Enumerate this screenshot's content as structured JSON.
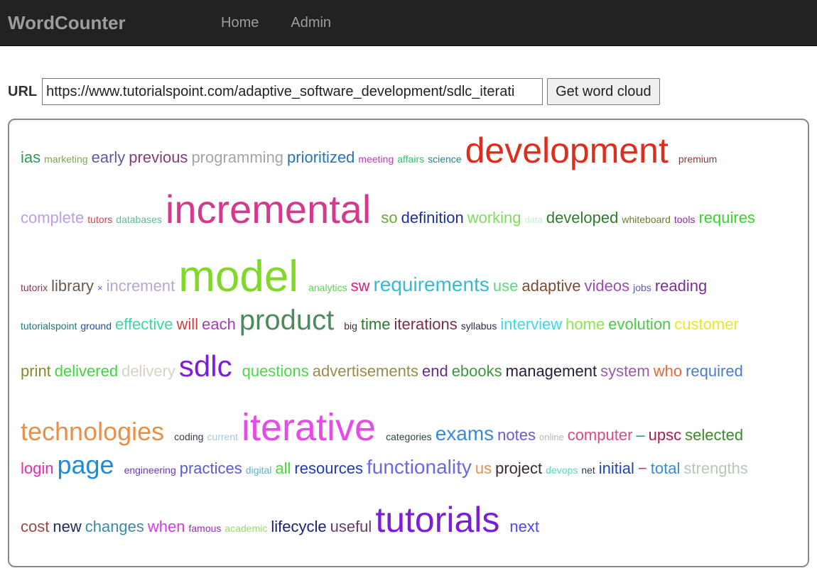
{
  "navbar": {
    "brand": "WordCounter",
    "links": [
      "Home",
      "Admin"
    ]
  },
  "form": {
    "label": "URL",
    "url_value": "https://www.tutorialspoint.com/adaptive_software_development/sdlc_iterati",
    "button_label": "Get word cloud"
  },
  "cloud": {
    "lines": [
      {
        "words": [
          {
            "t": "ias",
            "s": 22,
            "c": "#2e9a58"
          },
          {
            "t": "marketing",
            "s": 14,
            "c": "#7fa35a"
          },
          {
            "t": "early",
            "s": 22,
            "c": "#6757a8"
          },
          {
            "t": "previous",
            "s": 22,
            "c": "#8a3a7c"
          },
          {
            "t": "programming",
            "s": 22,
            "c": "#a5a5a5"
          },
          {
            "t": "prioritized",
            "s": 22,
            "c": "#2874b8"
          },
          {
            "t": "meeting",
            "s": 14,
            "c": "#c03ab5"
          },
          {
            "t": "affairs",
            "s": 14,
            "c": "#31c46b"
          },
          {
            "t": "science",
            "s": 14,
            "c": "#28809a"
          },
          {
            "t": "development",
            "s": 50,
            "c": "#dd2e1d"
          },
          {
            "t": "premium",
            "s": 14,
            "c": "#8c3a3a"
          }
        ]
      },
      {
        "words": [
          {
            "t": "complete",
            "s": 22,
            "c": "#c09be8"
          },
          {
            "t": "tutors",
            "s": 14,
            "c": "#d4424a"
          },
          {
            "t": "databases",
            "s": 14,
            "c": "#5cb89a"
          },
          {
            "t": "incremental",
            "s": 56,
            "c": "#d3398c"
          },
          {
            "t": "so",
            "s": 22,
            "c": "#6da83a"
          },
          {
            "t": "definition",
            "s": 22,
            "c": "#1e2ea5"
          },
          {
            "t": "working",
            "s": 22,
            "c": "#7fdc62"
          },
          {
            "t": "data",
            "s": 13,
            "c": "#c7ecd3"
          },
          {
            "t": "developed",
            "s": 22,
            "c": "#2e7d2e"
          },
          {
            "t": "whiteboard",
            "s": 14,
            "c": "#6e7a2a"
          },
          {
            "t": "tools",
            "s": 14,
            "c": "#8a2aa8"
          },
          {
            "t": "requires",
            "s": 22,
            "c": "#33d92a"
          }
        ]
      },
      {
        "words": [
          {
            "t": "tutorix",
            "s": 14,
            "c": "#8a3a4a"
          },
          {
            "t": "library",
            "s": 22,
            "c": "#6e5a4a"
          },
          {
            "t": "×",
            "s": 13,
            "c": "#6a5acd"
          },
          {
            "t": "increment",
            "s": 22,
            "c": "#b8a4d8"
          },
          {
            "t": "model",
            "s": 62,
            "c": "#80d92a"
          },
          {
            "t": "analytics",
            "s": 14,
            "c": "#54d94a"
          },
          {
            "t": "sw",
            "s": 22,
            "c": "#e5197b"
          },
          {
            "t": "requirements",
            "s": 28,
            "c": "#35bcd0"
          },
          {
            "t": "use",
            "s": 22,
            "c": "#5ed97d"
          },
          {
            "t": "adaptive",
            "s": 22,
            "c": "#7a4a33"
          },
          {
            "t": "videos",
            "s": 22,
            "c": "#a04ab8"
          },
          {
            "t": "jobs",
            "s": 14,
            "c": "#5a55c5"
          },
          {
            "t": "reading",
            "s": 22,
            "c": "#7a2e98"
          }
        ]
      },
      {
        "words": [
          {
            "t": "tutorialspoint",
            "s": 14,
            "c": "#1e7a7d"
          },
          {
            "t": "ground",
            "s": 14,
            "c": "#1e4fa8"
          },
          {
            "t": "effective",
            "s": 22,
            "c": "#3ad9a4"
          },
          {
            "t": "will",
            "s": 22,
            "c": "#d93a3a"
          },
          {
            "t": "each",
            "s": 22,
            "c": "#a43ab8"
          },
          {
            "t": "product",
            "s": 40,
            "c": "#4e8a5e"
          },
          {
            "t": "big",
            "s": 14,
            "c": "#4a2a4a"
          },
          {
            "t": "time",
            "s": 22,
            "c": "#2e7a2e"
          },
          {
            "t": "iterations",
            "s": 22,
            "c": "#7a2e4a"
          },
          {
            "t": "syllabus",
            "s": 14,
            "c": "#2e2a4e"
          },
          {
            "t": "interview",
            "s": 22,
            "c": "#3ad9e8"
          },
          {
            "t": "home",
            "s": 22,
            "c": "#8ae84a"
          },
          {
            "t": "evolution",
            "s": 22,
            "c": "#4ac848"
          },
          {
            "t": "customer",
            "s": 22,
            "c": "#e8e82a"
          }
        ]
      },
      {
        "words": [
          {
            "t": "print",
            "s": 22,
            "c": "#8a8a2a"
          },
          {
            "t": "delivered",
            "s": 22,
            "c": "#3ad93a"
          },
          {
            "t": "delivery",
            "s": 22,
            "c": "#d8d2c2"
          },
          {
            "t": "sdlc",
            "s": 42,
            "c": "#7a1ed9"
          },
          {
            "t": "questions",
            "s": 22,
            "c": "#4ad94a"
          },
          {
            "t": "advertisements",
            "s": 22,
            "c": "#9a8a4a"
          },
          {
            "t": "end",
            "s": 22,
            "c": "#6a2a8a"
          },
          {
            "t": "ebooks",
            "s": 22,
            "c": "#3a9a3a"
          },
          {
            "t": "management",
            "s": 22,
            "c": "#2a1a3a"
          },
          {
            "t": "system",
            "s": 22,
            "c": "#9a5aa8"
          },
          {
            "t": "who",
            "s": 22,
            "c": "#e86a3a"
          },
          {
            "t": "required",
            "s": 22,
            "c": "#4a7ad9"
          }
        ]
      },
      {
        "words": [
          {
            "t": "technologies",
            "s": 36,
            "c": "#e8904a"
          },
          {
            "t": "coding",
            "s": 14,
            "c": "#3a3a4a"
          },
          {
            "t": "current",
            "s": 14,
            "c": "#a8c8d8"
          },
          {
            "t": "iterative",
            "s": 54,
            "c": "#e84ae8"
          },
          {
            "t": "categories",
            "s": 14,
            "c": "#2a4a3a"
          },
          {
            "t": "exams",
            "s": 28,
            "c": "#3a8ad9"
          },
          {
            "t": "notes",
            "s": 22,
            "c": "#6a5ad9"
          },
          {
            "t": "online",
            "s": 13,
            "c": "#b8b8b8"
          },
          {
            "t": "computer",
            "s": 22,
            "c": "#d94a8a"
          },
          {
            "t": "–",
            "s": 22,
            "c": "#2a8a8a"
          },
          {
            "t": "upsc",
            "s": 22,
            "c": "#a81e4a"
          },
          {
            "t": "selected",
            "s": 22,
            "c": "#3a8a2a"
          }
        ]
      },
      {
        "words": [
          {
            "t": "login",
            "s": 22,
            "c": "#e82ab8"
          },
          {
            "t": "page",
            "s": 36,
            "c": "#1e8ad9"
          },
          {
            "t": "engineering",
            "s": 14,
            "c": "#6a3ab8"
          },
          {
            "t": "practices",
            "s": 22,
            "c": "#5a5ad9"
          },
          {
            "t": "digital",
            "s": 14,
            "c": "#5ab8c8"
          },
          {
            "t": "all",
            "s": 22,
            "c": "#4ad93a"
          },
          {
            "t": "resources",
            "s": 22,
            "c": "#1e3ab8"
          },
          {
            "t": "functionality",
            "s": 28,
            "c": "#6a6ae8"
          },
          {
            "t": "us",
            "s": 22,
            "c": "#e8904a"
          },
          {
            "t": "project",
            "s": 22,
            "c": "#3a2a2a"
          },
          {
            "t": "devops",
            "s": 14,
            "c": "#5ad9b8"
          },
          {
            "t": "net",
            "s": 14,
            "c": "#2a3a4a"
          },
          {
            "t": "initial",
            "s": 22,
            "c": "#1e4aa8"
          },
          {
            "t": "−",
            "s": 22,
            "c": "#e82a6a"
          },
          {
            "t": "total",
            "s": 22,
            "c": "#3a8ad9"
          },
          {
            "t": "strengths",
            "s": 22,
            "c": "#b8c8b8"
          }
        ]
      },
      {
        "words": [
          {
            "t": "cost",
            "s": 22,
            "c": "#9a4a3a"
          },
          {
            "t": "new",
            "s": 22,
            "c": "#1e2a5a"
          },
          {
            "t": "changes",
            "s": 22,
            "c": "#3a8aa8"
          },
          {
            "t": "when",
            "s": 22,
            "c": "#d93ae8"
          },
          {
            "t": "famous",
            "s": 14,
            "c": "#9a2ab8"
          },
          {
            "t": "academic",
            "s": 14,
            "c": "#9ad96a"
          },
          {
            "t": "lifecycle",
            "s": 22,
            "c": "#1e1e7a"
          },
          {
            "t": "useful",
            "s": 22,
            "c": "#6a3a6a"
          },
          {
            "t": "tutorials",
            "s": 50,
            "c": "#7a1ed9"
          },
          {
            "t": "next",
            "s": 22,
            "c": "#4a4ae8"
          }
        ]
      }
    ]
  }
}
